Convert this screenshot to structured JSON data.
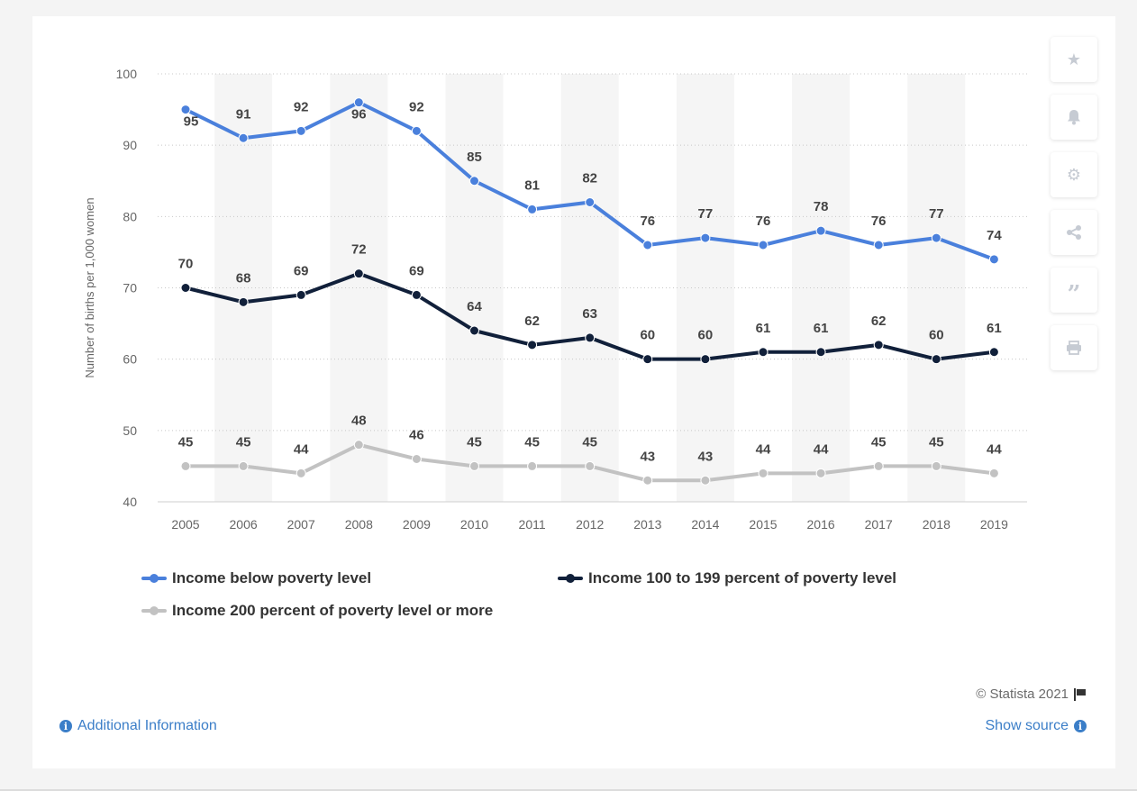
{
  "chart_data": {
    "type": "line",
    "title": "",
    "xlabel": "",
    "ylabel": "Number of births per 1,000 women",
    "ylim": [
      40,
      100
    ],
    "yticks": [
      40,
      50,
      60,
      70,
      80,
      90,
      100
    ],
    "grid": "horizontal-dotted",
    "legend_position": "bottom",
    "categories": [
      "2005",
      "2006",
      "2007",
      "2008",
      "2009",
      "2010",
      "2011",
      "2012",
      "2013",
      "2014",
      "2015",
      "2016",
      "2017",
      "2018",
      "2019"
    ],
    "series": [
      {
        "name": "Income below poverty level",
        "color": "#4a80dc",
        "values": [
          95,
          91,
          92,
          96,
          92,
          85,
          81,
          82,
          76,
          77,
          76,
          78,
          76,
          77,
          74
        ]
      },
      {
        "name": "Income 100 to 199 percent of poverty level",
        "color": "#11203a",
        "values": [
          70,
          68,
          69,
          72,
          69,
          64,
          62,
          63,
          60,
          60,
          61,
          61,
          62,
          60,
          61
        ]
      },
      {
        "name": "Income 200 percent of poverty level or more",
        "color": "#c2c2c2",
        "values": [
          45,
          45,
          44,
          48,
          46,
          45,
          45,
          45,
          43,
          43,
          44,
          44,
          45,
          45,
          44
        ]
      }
    ]
  },
  "toolbar": {
    "icons": [
      "star-icon",
      "bell-icon",
      "gear-icon",
      "share-icon",
      "quote-icon",
      "print-icon"
    ]
  },
  "footer": {
    "credit": "© Statista 2021",
    "additional_info": "Additional Information",
    "show_source": "Show source"
  }
}
